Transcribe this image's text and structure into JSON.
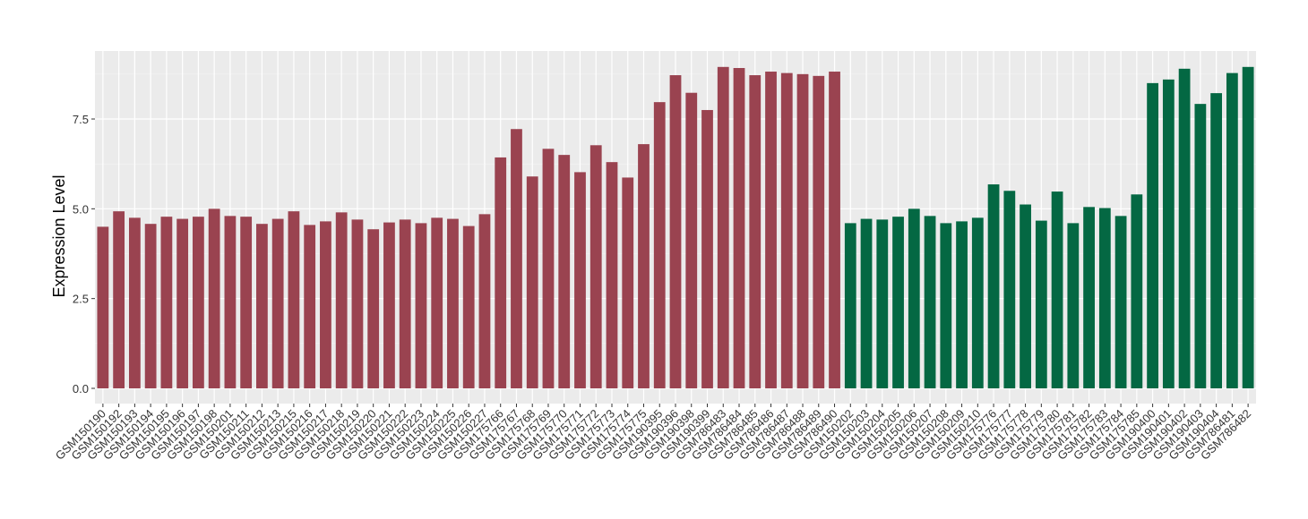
{
  "chart_data": {
    "type": "bar",
    "title": "",
    "xlabel": "",
    "ylabel": "Expression Level",
    "ylim": [
      0,
      9.4
    ],
    "yticks": [
      "0.0",
      "2.5",
      "5.0",
      "7.5"
    ],
    "ytick_values": [
      0,
      2.5,
      5,
      7.5
    ],
    "grid": true,
    "legend": "none",
    "colors": {
      "panel_background": "#EBEBEB",
      "grid_major": "#FFFFFF",
      "group_1": "#9A4350",
      "group_2": "#046843"
    },
    "categories": [
      "GSM150190",
      "GSM150192",
      "GSM150193",
      "GSM150194",
      "GSM150195",
      "GSM150196",
      "GSM150197",
      "GSM150198",
      "GSM150201",
      "GSM150211",
      "GSM150212",
      "GSM150213",
      "GSM150215",
      "GSM150216",
      "GSM150217",
      "GSM150218",
      "GSM150219",
      "GSM150220",
      "GSM150221",
      "GSM150222",
      "GSM150223",
      "GSM150224",
      "GSM150225",
      "GSM150226",
      "GSM150227",
      "GSM175766",
      "GSM175767",
      "GSM175768",
      "GSM175769",
      "GSM175770",
      "GSM175771",
      "GSM175772",
      "GSM175773",
      "GSM175774",
      "GSM175775",
      "GSM190395",
      "GSM190396",
      "GSM190398",
      "GSM190399",
      "GSM786483",
      "GSM786484",
      "GSM786485",
      "GSM786486",
      "GSM786487",
      "GSM786488",
      "GSM786489",
      "GSM786490",
      "GSM150202",
      "GSM150203",
      "GSM150204",
      "GSM150205",
      "GSM150206",
      "GSM150207",
      "GSM150208",
      "GSM150209",
      "GSM150210",
      "GSM175776",
      "GSM175777",
      "GSM175778",
      "GSM175779",
      "GSM175780",
      "GSM175781",
      "GSM175782",
      "GSM175783",
      "GSM175784",
      "GSM175785",
      "GSM190400",
      "GSM190401",
      "GSM190402",
      "GSM190403",
      "GSM190404",
      "GSM786481",
      "GSM786482"
    ],
    "values": [
      4.5,
      4.93,
      4.75,
      4.58,
      4.78,
      4.72,
      4.78,
      5.0,
      4.8,
      4.78,
      4.58,
      4.72,
      4.93,
      4.55,
      4.65,
      4.9,
      4.7,
      4.43,
      4.62,
      4.7,
      4.6,
      4.75,
      4.72,
      4.52,
      4.85,
      6.43,
      7.22,
      5.9,
      6.67,
      6.5,
      6.02,
      6.77,
      6.3,
      5.87,
      6.8,
      7.97,
      8.72,
      8.23,
      7.75,
      8.95,
      8.92,
      8.72,
      8.82,
      8.78,
      8.75,
      8.7,
      8.82,
      4.6,
      4.72,
      4.7,
      4.78,
      5.0,
      4.8,
      4.6,
      4.65,
      4.75,
      5.68,
      5.5,
      5.12,
      4.67,
      5.48,
      4.6,
      5.05,
      5.02,
      4.8,
      5.4,
      8.5,
      8.6,
      8.9,
      7.92,
      8.22,
      8.78,
      8.95
    ],
    "group_of_bar": [
      1,
      1,
      1,
      1,
      1,
      1,
      1,
      1,
      1,
      1,
      1,
      1,
      1,
      1,
      1,
      1,
      1,
      1,
      1,
      1,
      1,
      1,
      1,
      1,
      1,
      1,
      1,
      1,
      1,
      1,
      1,
      1,
      1,
      1,
      1,
      1,
      1,
      1,
      1,
      1,
      1,
      1,
      1,
      1,
      1,
      1,
      1,
      2,
      2,
      2,
      2,
      2,
      2,
      2,
      2,
      2,
      2,
      2,
      2,
      2,
      2,
      2,
      2,
      2,
      2,
      2,
      2,
      2,
      2,
      2,
      2,
      2,
      2
    ]
  }
}
